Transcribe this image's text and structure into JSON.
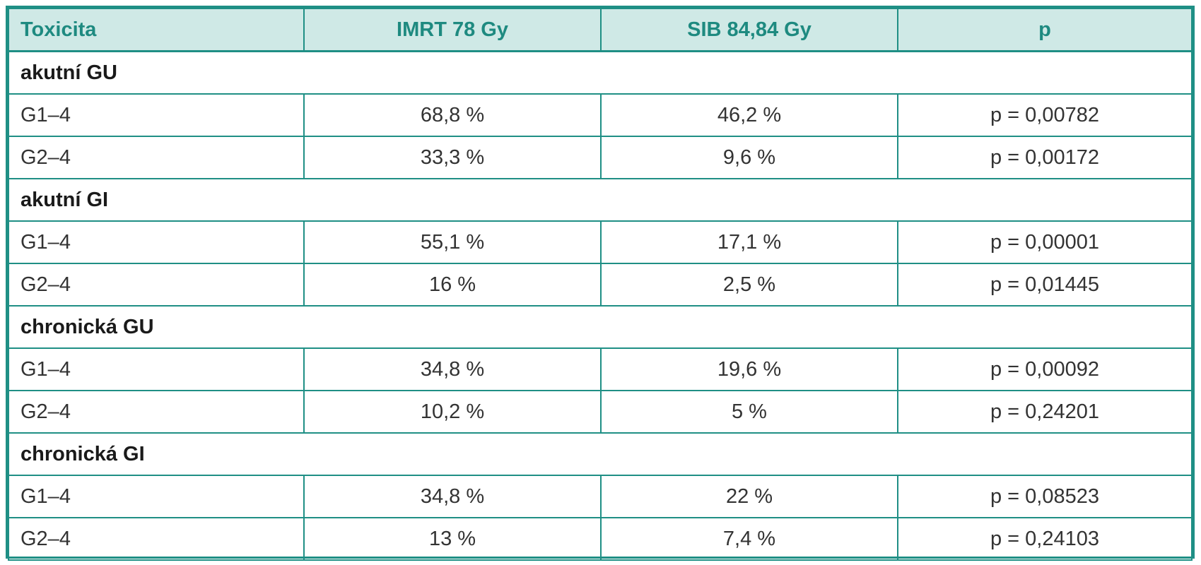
{
  "table": {
    "headers": [
      "Toxicita",
      "IMRT 78 Gy",
      "SIB 84,84 Gy",
      "p"
    ],
    "groups": [
      {
        "title": "akutní GU",
        "rows": [
          [
            "G1–4",
            "68,8 %",
            "46,2 %",
            "p = 0,00782"
          ],
          [
            "G2–4",
            "33,3 %",
            "9,6 %",
            "p = 0,00172"
          ]
        ]
      },
      {
        "title": "akutní GI",
        "rows": [
          [
            "G1–4",
            "55,1 %",
            "17,1 %",
            "p = 0,00001"
          ],
          [
            "G2–4",
            "16 %",
            "2,5 %",
            "p = 0,01445"
          ]
        ]
      },
      {
        "title": "chronická GU",
        "rows": [
          [
            "G1–4",
            "34,8 %",
            "19,6 %",
            "p = 0,00092"
          ],
          [
            "G2–4",
            "10,2 %",
            "5 %",
            "p = 0,24201"
          ]
        ]
      },
      {
        "title": "chronická GI",
        "rows": [
          [
            "G1–4",
            "34,8 %",
            "22 %",
            "p = 0,08523"
          ],
          [
            "G2–4",
            "13 %",
            "7,4 %",
            "p = 0,24103"
          ]
        ]
      }
    ]
  },
  "colors": {
    "border": "#1f8f85",
    "header_bg": "#cfe9e6",
    "header_text": "#1e8a80"
  }
}
